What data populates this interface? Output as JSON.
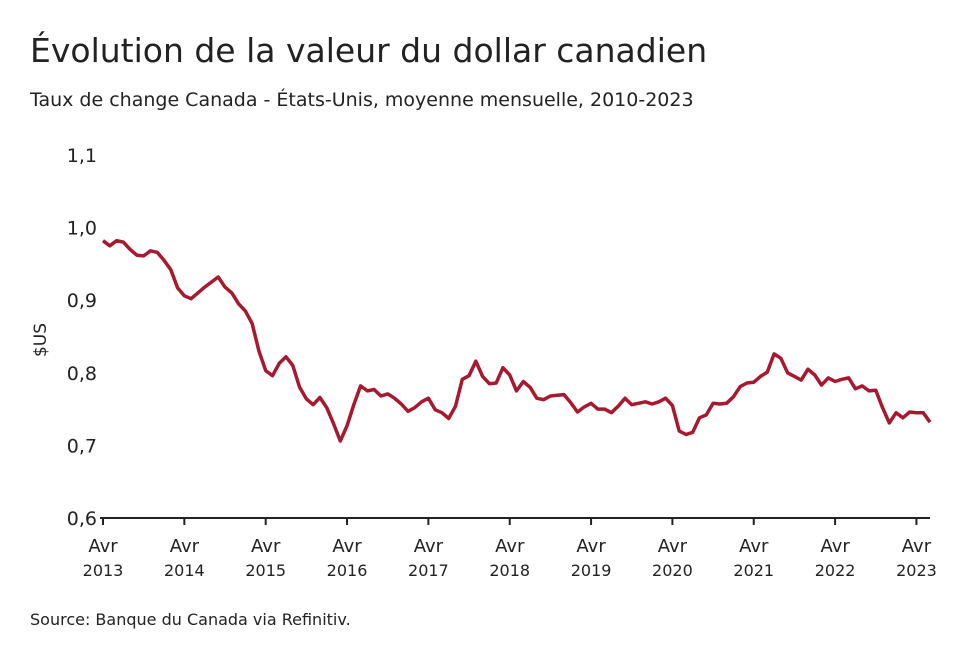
{
  "chart_data": {
    "type": "line",
    "title": "Évolution de la valeur du dollar canadien",
    "subtitle": "Taux de change Canada - États-Unis, moyenne mensuelle, 2010-2023",
    "y_label": "$US",
    "source": "Source: Banque du Canada via Refinitiv.",
    "color": "#a6192e",
    "x": [
      "2013-04",
      "2013-05",
      "2013-06",
      "2013-07",
      "2013-08",
      "2013-09",
      "2013-10",
      "2013-11",
      "2013-12",
      "2014-01",
      "2014-02",
      "2014-03",
      "2014-04",
      "2014-05",
      "2014-06",
      "2014-07",
      "2014-08",
      "2014-09",
      "2014-10",
      "2014-11",
      "2014-12",
      "2015-01",
      "2015-02",
      "2015-03",
      "2015-04",
      "2015-05",
      "2015-06",
      "2015-07",
      "2015-08",
      "2015-09",
      "2015-10",
      "2015-11",
      "2015-12",
      "2016-01",
      "2016-02",
      "2016-03",
      "2016-04",
      "2016-05",
      "2016-06",
      "2016-07",
      "2016-08",
      "2016-09",
      "2016-10",
      "2016-11",
      "2016-12",
      "2017-01",
      "2017-02",
      "2017-03",
      "2017-04",
      "2017-05",
      "2017-06",
      "2017-07",
      "2017-08",
      "2017-09",
      "2017-10",
      "2017-11",
      "2017-12",
      "2018-01",
      "2018-02",
      "2018-03",
      "2018-04",
      "2018-05",
      "2018-06",
      "2018-07",
      "2018-08",
      "2018-09",
      "2018-10",
      "2018-11",
      "2018-12",
      "2019-01",
      "2019-02",
      "2019-03",
      "2019-04",
      "2019-05",
      "2019-06",
      "2019-07",
      "2019-08",
      "2019-09",
      "2019-10",
      "2019-11",
      "2019-12",
      "2020-01",
      "2020-02",
      "2020-03",
      "2020-04",
      "2020-05",
      "2020-06",
      "2020-07",
      "2020-08",
      "2020-09",
      "2020-10",
      "2020-11",
      "2020-12",
      "2021-01",
      "2021-02",
      "2021-03",
      "2021-04",
      "2021-05",
      "2021-06",
      "2021-07",
      "2021-08",
      "2021-09",
      "2021-10",
      "2021-11",
      "2021-12",
      "2022-01",
      "2022-02",
      "2022-03",
      "2022-04",
      "2022-05",
      "2022-06",
      "2022-07",
      "2022-08",
      "2022-09",
      "2022-10",
      "2022-11",
      "2022-12",
      "2023-01",
      "2023-02",
      "2023-03",
      "2023-04",
      "2023-05",
      "2023-06"
    ],
    "values": [
      0.982,
      0.975,
      0.982,
      0.98,
      0.97,
      0.962,
      0.961,
      0.968,
      0.966,
      0.955,
      0.942,
      0.917,
      0.906,
      0.902,
      0.91,
      0.918,
      0.925,
      0.932,
      0.918,
      0.91,
      0.895,
      0.885,
      0.868,
      0.83,
      0.803,
      0.796,
      0.813,
      0.822,
      0.81,
      0.78,
      0.764,
      0.756,
      0.766,
      0.752,
      0.73,
      0.706,
      0.727,
      0.756,
      0.782,
      0.775,
      0.777,
      0.768,
      0.771,
      0.765,
      0.757,
      0.747,
      0.752,
      0.76,
      0.765,
      0.749,
      0.745,
      0.737,
      0.754,
      0.791,
      0.796,
      0.816,
      0.795,
      0.785,
      0.786,
      0.807,
      0.797,
      0.775,
      0.788,
      0.78,
      0.765,
      0.763,
      0.768,
      0.769,
      0.77,
      0.759,
      0.746,
      0.753,
      0.758,
      0.75,
      0.75,
      0.745,
      0.754,
      0.765,
      0.756,
      0.758,
      0.76,
      0.757,
      0.76,
      0.765,
      0.755,
      0.72,
      0.715,
      0.718,
      0.738,
      0.742,
      0.758,
      0.757,
      0.758,
      0.767,
      0.781,
      0.786,
      0.787,
      0.795,
      0.801,
      0.826,
      0.82,
      0.8,
      0.795,
      0.79,
      0.805,
      0.797,
      0.783,
      0.793,
      0.788,
      0.791,
      0.793,
      0.778,
      0.782,
      0.775,
      0.776,
      0.752,
      0.731,
      0.745,
      0.738,
      0.746,
      0.745,
      0.745,
      0.732
    ],
    "ylim": [
      0.6,
      1.1
    ],
    "yticks": [
      {
        "value": 0.6,
        "label": "0,6"
      },
      {
        "value": 0.7,
        "label": "0,7"
      },
      {
        "value": 0.8,
        "label": "0,8"
      },
      {
        "value": 0.9,
        "label": "0,9"
      },
      {
        "value": 1.0,
        "label": "1,0"
      },
      {
        "value": 1.1,
        "label": "1,1"
      }
    ],
    "xticks": [
      {
        "value": "2013-04",
        "label": "Avr 2013"
      },
      {
        "value": "2014-04",
        "label": "Avr 2014"
      },
      {
        "value": "2015-04",
        "label": "Avr 2015"
      },
      {
        "value": "2016-04",
        "label": "Avr 2016"
      },
      {
        "value": "2017-04",
        "label": "Avr 2017"
      },
      {
        "value": "2018-04",
        "label": "Avr 2018"
      },
      {
        "value": "2019-04",
        "label": "Avr 2019"
      },
      {
        "value": "2020-04",
        "label": "Avr 2020"
      },
      {
        "value": "2021-04",
        "label": "Avr 2021"
      },
      {
        "value": "2022-04",
        "label": "Avr 2022"
      },
      {
        "value": "2023-04",
        "label": "Avr 2023"
      }
    ]
  }
}
